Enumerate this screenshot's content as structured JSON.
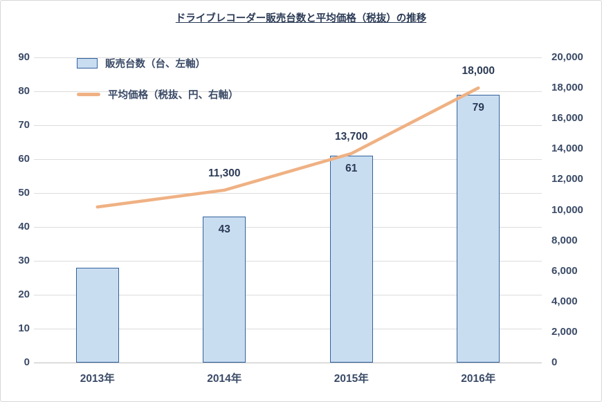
{
  "title": "ドライブレコーダー販売台数と平均価格（税抜）の推移",
  "legend": [
    {
      "label": "販売台数（台、左軸）",
      "type": "bar"
    },
    {
      "label": "平均価格（税抜、円、右軸）",
      "type": "line"
    }
  ],
  "colors": {
    "bar_fill": "#c9ddf1",
    "bar_border": "#31619c",
    "line": "#efb183",
    "text": "#3a4a66",
    "text_strong": "#2b3a55",
    "grid": "#dcdcdc",
    "axis_line": "#bfbfbf"
  },
  "chart_data": {
    "type": "combo-bar-line",
    "title": "ドライブレコーダー販売台数と平均価格（税抜）の推移",
    "categories": [
      "2013年",
      "2014年",
      "2015年",
      "2016年"
    ],
    "series": [
      {
        "name": "販売台数（台、左軸）",
        "type": "bar",
        "axis": "left",
        "values": [
          28,
          43,
          61,
          79
        ],
        "data_labels": [
          null,
          "43",
          "61",
          "79"
        ]
      },
      {
        "name": "平均価格（税抜、円、右軸）",
        "type": "line",
        "axis": "right",
        "values": [
          10200,
          11300,
          13700,
          18000
        ],
        "data_labels": [
          null,
          "11,300",
          "13,700",
          "18,000"
        ]
      }
    ],
    "left_axis": {
      "min": 0,
      "max": 90,
      "step": 10
    },
    "right_axis": {
      "min": 0,
      "max": 20000,
      "step": 2000
    },
    "grid": true,
    "legend_position": "top-left-inside"
  }
}
